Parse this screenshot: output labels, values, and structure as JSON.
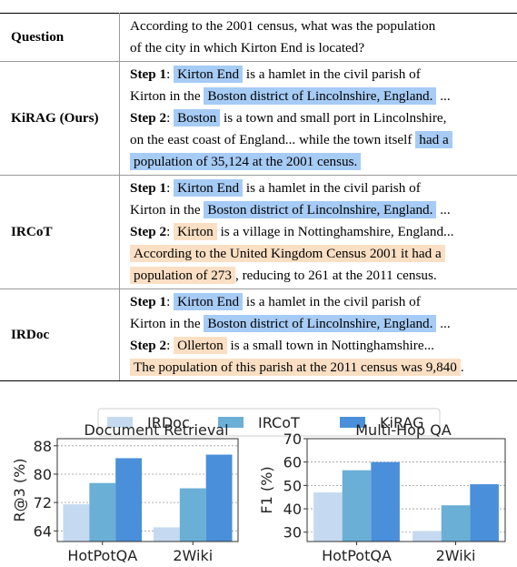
{
  "table": {
    "question_label": "Question",
    "question_text_1": "According to the 2001 census, what was the population",
    "question_text_2": "of the city in which Kirton End is located?",
    "kirag": {
      "label": "KiRAG (Ours)",
      "step1": "Step 1",
      "s1_hl1": "Kirton End",
      "s1_t1": "is a hamlet in the civil parish of",
      "s1_t2": "Kirton in the",
      "s1_hl2": "Boston district of Lincolnshire, England.",
      "s1_t3": "...",
      "step2": "Step 2",
      "s2_hl1": "Boston",
      "s2_t1": "is a town and small port in Lincolnshire,",
      "s2_t2": "on the east coast of England... while the town itself",
      "s2_hl2a": "had a",
      "s2_hl2b": "population of 35,124 at the 2001 census."
    },
    "ircot": {
      "label": "IRCoT",
      "step1": "Step 1",
      "s1_hl1": "Kirton End",
      "s1_t1": "is a hamlet in the civil parish of",
      "s1_t2": "Kirton in the",
      "s1_hl2": "Boston district of Lincolnshire, England.",
      "s1_t3": "...",
      "step2": "Step 2",
      "s2_hl1": "Kirton",
      "s2_t1": "is a village in Nottinghamshire, England...",
      "s2_hl2a": "According to the United Kingdom Census 2001 it had a",
      "s2_hl2b": "population of 273",
      "s2_t2": ", reducing to 261 at the 2011 census."
    },
    "irdoc": {
      "label": "IRDoc",
      "step1": "Step 1",
      "s1_hl1": "Kirton End",
      "s1_t1": "is a hamlet in the civil parish of",
      "s1_t2": "Kirton in the",
      "s1_hl2": "Boston district of Lincolnshire, England.",
      "s1_t3": "...",
      "step2": "Step 2",
      "s2_hl1": "Ollerton",
      "s2_t1": "is a small town in Nottinghamshire...",
      "s2_hl2": "The population of this parish at the 2011 census was 9,840",
      "s2_t2": "."
    }
  },
  "legend": [
    "IRDoc",
    "IRCoT",
    "KiRAG"
  ],
  "colors": {
    "IRDoc": "#c5daf0",
    "IRCoT": "#6aafd6",
    "KiRAG": "#4a8fd9",
    "highlight_blue": "#a6cbf5",
    "highlight_orange": "#fbdfc4"
  },
  "chart_data": [
    {
      "type": "bar",
      "title": "Document Retrieval",
      "ylabel": "R@3 (%)",
      "xlabel": "",
      "categories": [
        "HotPotQA",
        "2Wiki"
      ],
      "ylim": [
        61,
        90
      ],
      "yticks": [
        64,
        72,
        80,
        88
      ],
      "grid": true,
      "series": [
        {
          "name": "IRDoc",
          "values": [
            71.5,
            65.0
          ]
        },
        {
          "name": "IRCoT",
          "values": [
            77.5,
            76.0
          ]
        },
        {
          "name": "KiRAG",
          "values": [
            84.5,
            85.5
          ]
        }
      ]
    },
    {
      "type": "bar",
      "title": "Multi-Hop QA",
      "ylabel": "F1 (%)",
      "xlabel": "",
      "categories": [
        "HotPotQA",
        "2Wiki"
      ],
      "ylim": [
        26,
        70
      ],
      "yticks": [
        30,
        40,
        50,
        60,
        70
      ],
      "grid": true,
      "series": [
        {
          "name": "IRDoc",
          "values": [
            47.0,
            30.5
          ]
        },
        {
          "name": "IRCoT",
          "values": [
            56.5,
            41.5
          ]
        },
        {
          "name": "KiRAG",
          "values": [
            60.0,
            50.5
          ]
        }
      ]
    }
  ]
}
